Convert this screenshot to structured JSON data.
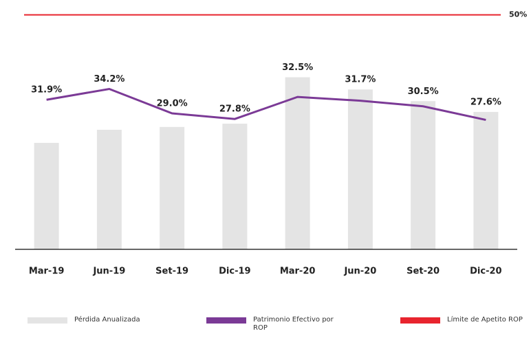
{
  "chart_data": {
    "type": "bar_line",
    "categories": [
      "Mar-19",
      "Jun-19",
      "Set-19",
      "Dic-19",
      "Mar-20",
      "Jun-20",
      "Set-20",
      "Dic-20"
    ],
    "series": [
      {
        "name": "Pérdida Anualizada",
        "type": "bar",
        "color": "#e4e4e4",
        "values": [
          22.7,
          25.5,
          26.1,
          26.8,
          36.7,
          34.1,
          31.6,
          29.3
        ]
      },
      {
        "name": "Patrimonio Efectivo por ROP",
        "type": "line",
        "color": "#7b3a96",
        "values": [
          31.9,
          34.2,
          29.0,
          27.8,
          32.5,
          31.7,
          30.5,
          27.6
        ],
        "value_labels": [
          "31.9%",
          "34.2%",
          "29.0%",
          "27.8%",
          "32.5%",
          "31.7%",
          "30.5%",
          "27.6%"
        ]
      }
    ],
    "limit": {
      "name": "Límite de Apetito ROP",
      "value": 50,
      "label": "50%",
      "color": "#e8242e"
    },
    "ylim": [
      0,
      52
    ]
  }
}
